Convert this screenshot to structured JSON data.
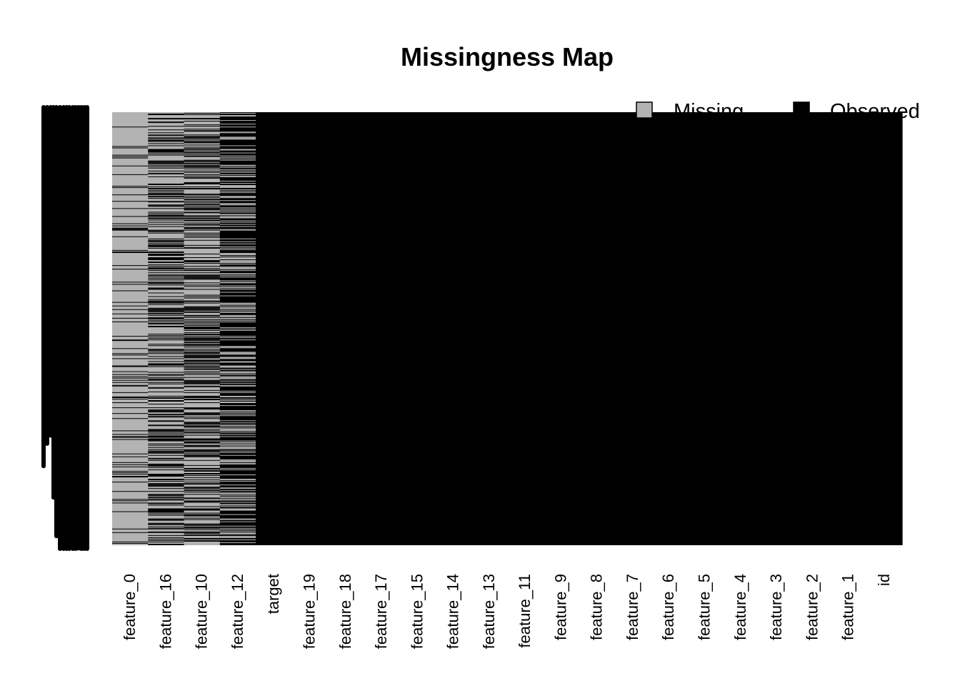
{
  "chart_data": {
    "type": "heatmap",
    "title": "Missingness Map",
    "legend": {
      "placement": "top-right",
      "items": [
        {
          "label": "Missing",
          "color": "#b3b3b3"
        },
        {
          "label": "Observed",
          "color": "#000000"
        }
      ]
    },
    "columns": [
      {
        "name": "feature_0",
        "missing_fraction": 0.85
      },
      {
        "name": "feature_16",
        "missing_fraction": 0.55
      },
      {
        "name": "feature_10",
        "missing_fraction": 0.55
      },
      {
        "name": "feature_12",
        "missing_fraction": 0.4
      },
      {
        "name": "target",
        "missing_fraction": 0
      },
      {
        "name": "feature_19",
        "missing_fraction": 0
      },
      {
        "name": "feature_18",
        "missing_fraction": 0
      },
      {
        "name": "feature_17",
        "missing_fraction": 0
      },
      {
        "name": "feature_15",
        "missing_fraction": 0
      },
      {
        "name": "feature_14",
        "missing_fraction": 0
      },
      {
        "name": "feature_13",
        "missing_fraction": 0
      },
      {
        "name": "feature_11",
        "missing_fraction": 0
      },
      {
        "name": "feature_9",
        "missing_fraction": 0
      },
      {
        "name": "feature_8",
        "missing_fraction": 0
      },
      {
        "name": "feature_7",
        "missing_fraction": 0
      },
      {
        "name": "feature_6",
        "missing_fraction": 0
      },
      {
        "name": "feature_5",
        "missing_fraction": 0
      },
      {
        "name": "feature_4",
        "missing_fraction": 0
      },
      {
        "name": "feature_3",
        "missing_fraction": 0
      },
      {
        "name": "feature_2",
        "missing_fraction": 0
      },
      {
        "name": "feature_1",
        "missing_fraction": 0
      },
      {
        "name": "id",
        "missing_fraction": 0
      }
    ],
    "colors": {
      "missing": "#b3b3b3",
      "observed": "#000000"
    }
  }
}
